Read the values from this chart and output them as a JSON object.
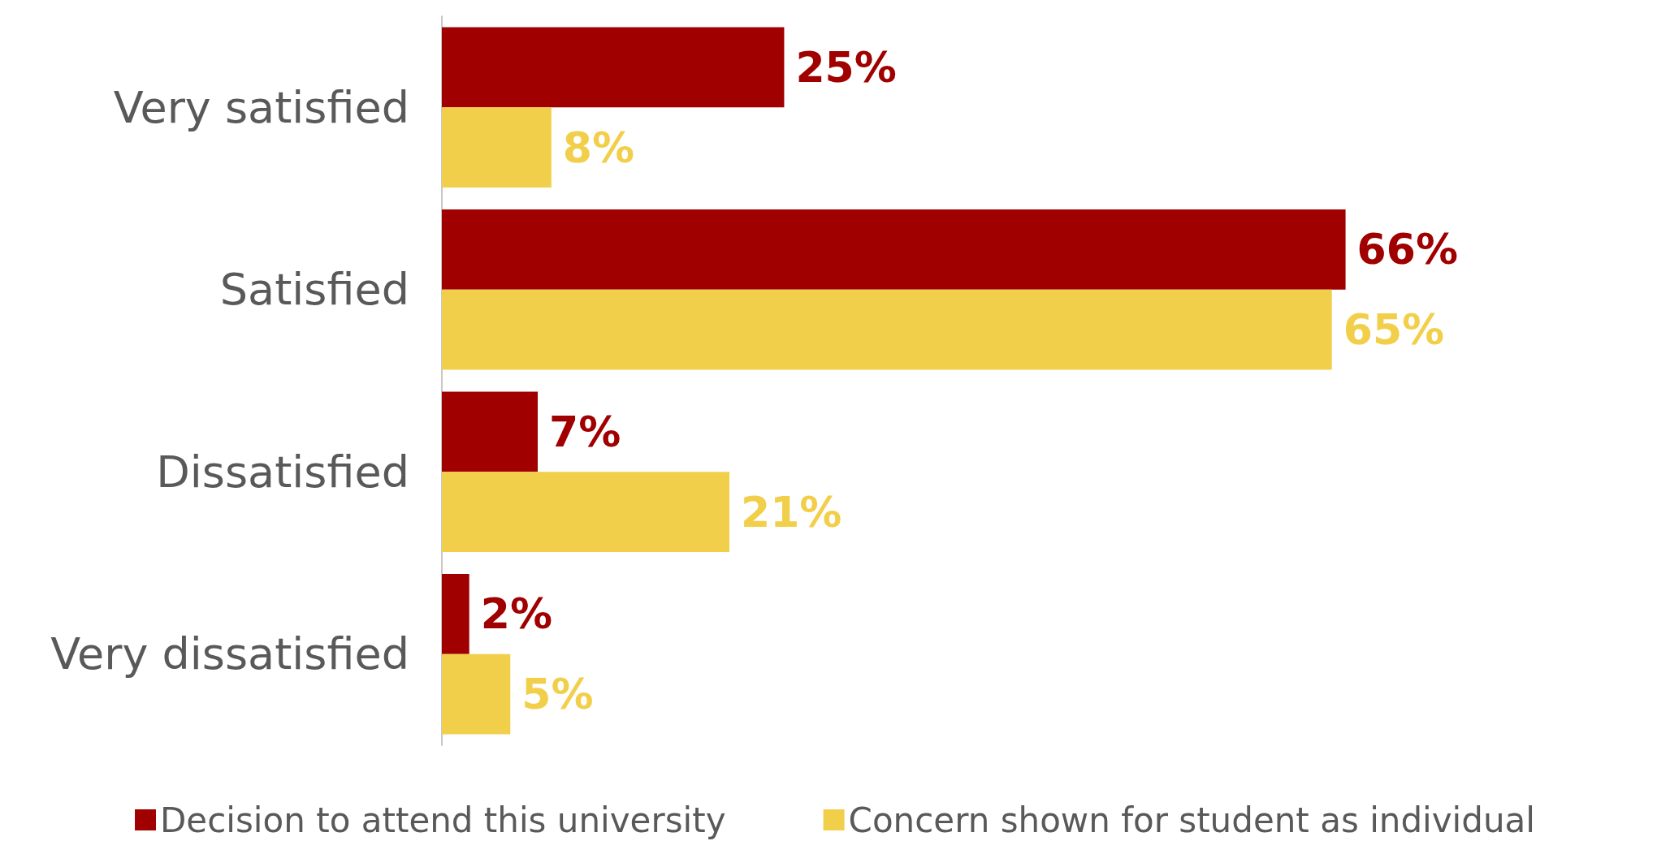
{
  "chart_data": {
    "type": "bar",
    "orientation": "horizontal",
    "categories": [
      "Very satisfied",
      "Satisfied",
      "Dissatisfied",
      "Very dissatisfied"
    ],
    "series": [
      {
        "name": "Decision to attend this university",
        "color": "#a00000",
        "values": [
          25,
          66,
          7,
          2
        ],
        "value_labels": [
          "25%",
          "66%",
          "7%",
          "2%"
        ]
      },
      {
        "name": "Concern shown for student as individual",
        "color": "#f2cf4a",
        "values": [
          8,
          65,
          21,
          5
        ],
        "value_labels": [
          "8%",
          "65%",
          "21%",
          "5%"
        ]
      }
    ],
    "tick_labels": "y",
    "grid": false,
    "legend": "bottom"
  }
}
